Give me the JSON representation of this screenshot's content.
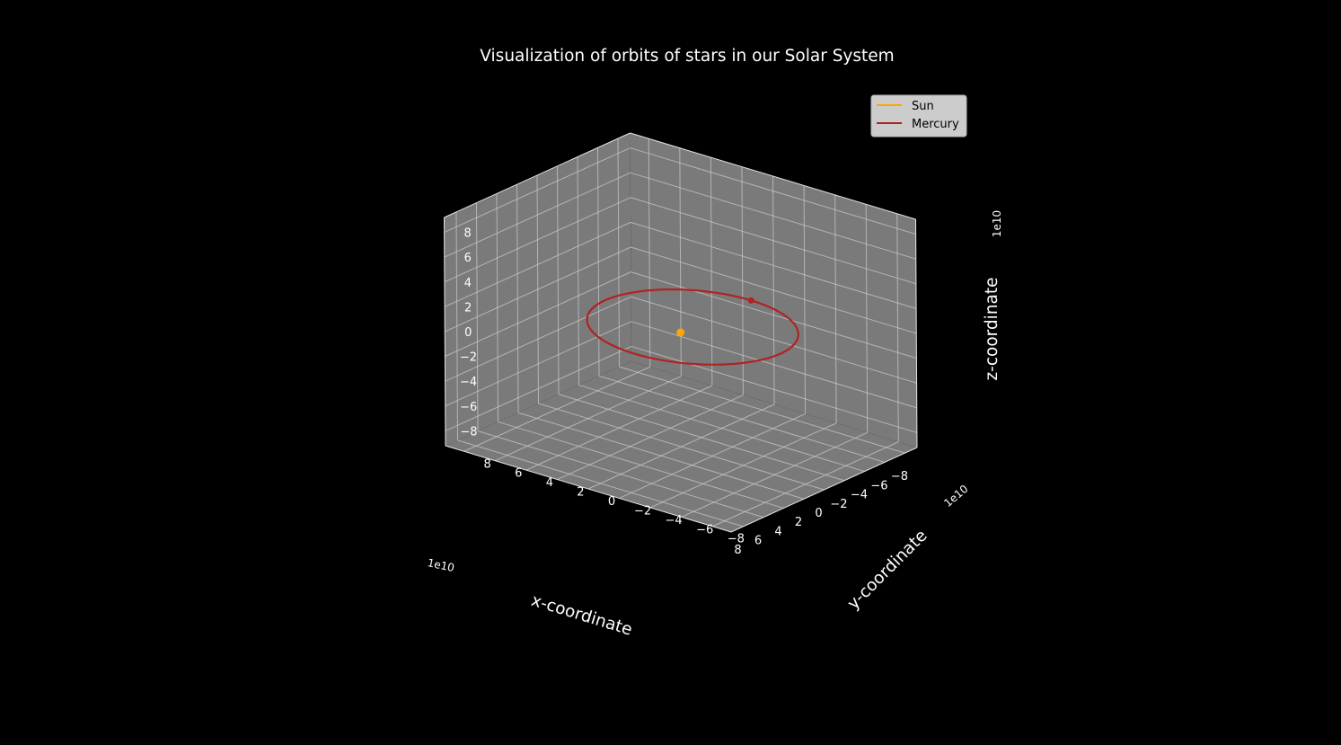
{
  "chart_data": {
    "type": "line",
    "projection": "3d",
    "title": "Visualization of orbits of stars in our Solar System",
    "xlabel": "x-coordinate",
    "ylabel": "y-coordinate",
    "zlabel": "z-coordinate",
    "xlim": [
      -92000000000.0,
      92000000000.0
    ],
    "ylim": [
      -92000000000.0,
      92000000000.0
    ],
    "zlim": [
      -92000000000.0,
      92000000000.0
    ],
    "x_ticks": [
      "−8",
      "−6",
      "−4",
      "−2",
      "0",
      "2",
      "4",
      "6",
      "8"
    ],
    "y_ticks": [
      "−8",
      "−6",
      "−4",
      "−2",
      "0",
      "2",
      "4",
      "6",
      "8"
    ],
    "z_ticks": [
      "−8",
      "−6",
      "−4",
      "−2",
      "0",
      "2",
      "4",
      "6",
      "8"
    ],
    "x_tick_values": [
      -80000000000.0,
      -60000000000.0,
      -40000000000.0,
      -20000000000.0,
      0,
      20000000000.0,
      40000000000.0,
      60000000000.0,
      80000000000.0
    ],
    "y_tick_values": [
      -80000000000.0,
      -60000000000.0,
      -40000000000.0,
      -20000000000.0,
      0,
      20000000000.0,
      40000000000.0,
      60000000000.0,
      80000000000.0
    ],
    "z_tick_values": [
      -80000000000.0,
      -60000000000.0,
      -40000000000.0,
      -20000000000.0,
      0,
      20000000000.0,
      40000000000.0,
      60000000000.0,
      80000000000.0
    ],
    "x_offset_text": "1e10",
    "y_offset_text": "1e10",
    "z_offset_text": "1e10",
    "grid": true,
    "background_color": "#000000",
    "pane_color": "#7a7a7a",
    "legend_position": "top-right",
    "series": [
      {
        "name": "Sun",
        "color": "#ffa500",
        "marker": "point",
        "x": [
          0
        ],
        "y": [
          0
        ],
        "z": [
          0
        ]
      },
      {
        "name": "Mercury",
        "color": "#b22222",
        "marker": "orbit",
        "semi_major_axis": 57900000000.0,
        "eccentricity": 0.206,
        "z": 0,
        "current_position": {
          "x": -69800000000.0,
          "y": 0,
          "z": 0
        }
      }
    ]
  }
}
